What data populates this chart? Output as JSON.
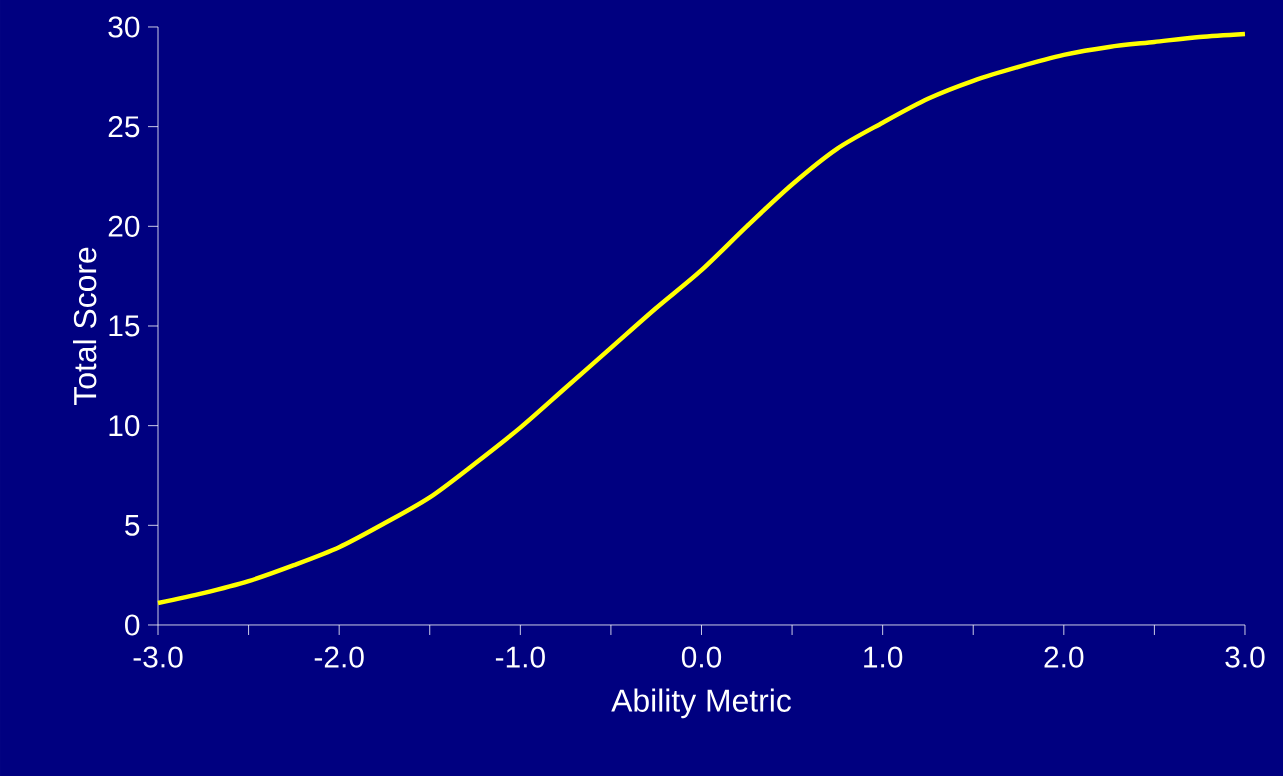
{
  "chart_data": {
    "type": "line",
    "xlabel": "Ability Metric",
    "ylabel": "Total Score",
    "x": [
      -3.0,
      -2.75,
      -2.5,
      -2.25,
      -2.0,
      -1.75,
      -1.5,
      -1.25,
      -1.0,
      -0.75,
      -0.5,
      -0.25,
      0.0,
      0.25,
      0.5,
      0.75,
      1.0,
      1.25,
      1.5,
      1.75,
      2.0,
      2.25,
      2.5,
      2.75,
      3.0
    ],
    "series": [
      {
        "color": "#ffff00",
        "values": [
          1.1,
          1.6,
          2.2,
          3.0,
          3.9,
          5.1,
          6.4,
          8.1,
          9.9,
          11.9,
          13.9,
          15.9,
          17.8,
          20.0,
          22.1,
          23.9,
          25.2,
          26.4,
          27.3,
          28.0,
          28.6,
          29.0,
          29.25,
          29.5,
          29.65
        ]
      }
    ],
    "xlim": [
      -3.0,
      3.0
    ],
    "ylim": [
      0,
      30
    ],
    "xticks": [
      {
        "value": -3.0,
        "label": "-3.0"
      },
      {
        "value": -2.5,
        "label": null
      },
      {
        "value": -2.0,
        "label": "-2.0"
      },
      {
        "value": -1.5,
        "label": null
      },
      {
        "value": -1.0,
        "label": "-1.0"
      },
      {
        "value": -0.5,
        "label": null
      },
      {
        "value": 0.0,
        "label": "0.0"
      },
      {
        "value": 0.5,
        "label": null
      },
      {
        "value": 1.0,
        "label": "1.0"
      },
      {
        "value": 1.5,
        "label": null
      },
      {
        "value": 2.0,
        "label": "2.0"
      },
      {
        "value": 2.5,
        "label": null
      },
      {
        "value": 3.0,
        "label": "3.0"
      }
    ],
    "yticks": [
      0,
      5,
      10,
      15,
      20,
      25,
      30
    ]
  }
}
